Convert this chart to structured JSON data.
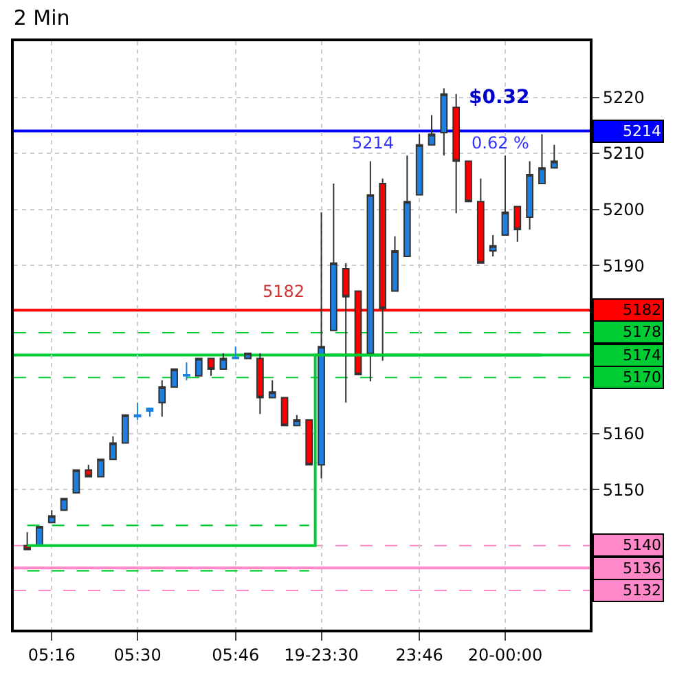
{
  "chart_data": {
    "type": "candlestick",
    "title": "2 Min",
    "categories": [
      null,
      null,
      "05:16",
      null,
      null,
      null,
      null,
      null,
      null,
      "05:30",
      null,
      null,
      null,
      null,
      null,
      null,
      null,
      "05:46",
      null,
      null,
      null,
      null,
      null,
      null,
      "19-23:30",
      null,
      null,
      null,
      null,
      null,
      null,
      null,
      "23:46",
      null,
      null,
      null,
      null,
      null,
      null,
      "20-00:00",
      null,
      null,
      null,
      null
    ],
    "ohlc": [
      [
        5140.0,
        5142.4,
        5139.3,
        5139.3
      ],
      [
        5140.0,
        5143.4,
        5140.0,
        5143.4
      ],
      [
        5144.1,
        5146.3,
        5144.1,
        5145.3
      ],
      [
        5146.3,
        5148.5,
        5146.3,
        5148.4
      ],
      [
        5149.4,
        5153.5,
        5149.4,
        5153.5
      ],
      [
        5153.5,
        5154.4,
        5152.3,
        5152.3
      ],
      [
        5152.3,
        5155.4,
        5152.3,
        5155.4
      ],
      [
        5155.4,
        5159.5,
        5155.4,
        5158.3
      ],
      [
        5158.3,
        5163.3,
        5158.3,
        5163.3
      ],
      [
        5163.0,
        5165.5,
        5162.4,
        5163.3
      ],
      [
        5164.5,
        5164.5,
        5163.0,
        5164.0
      ],
      [
        5165.5,
        5169.5,
        5163.0,
        5168.3
      ],
      [
        5168.3,
        5171.5,
        5168.3,
        5171.5
      ],
      [
        5170.3,
        5172.7,
        5169.5,
        5170.5
      ],
      [
        5170.3,
        5173.4,
        5170.3,
        5173.4
      ],
      [
        5173.4,
        5173.4,
        5170.3,
        5171.5
      ],
      [
        5171.5,
        5174.3,
        5171.5,
        5173.4
      ],
      [
        5173.4,
        5175.5,
        5173.4,
        5173.6
      ],
      [
        5173.4,
        5174.3,
        5173.4,
        5174.3
      ],
      [
        5173.4,
        5174.3,
        5163.5,
        5166.4
      ],
      [
        5166.4,
        5169.5,
        5166.4,
        5167.4
      ],
      [
        5166.4,
        5166.4,
        5161.4,
        5161.4
      ],
      [
        5161.4,
        5163.3,
        5161.4,
        5162.4
      ],
      [
        5162.4,
        5162.4,
        5154.4,
        5154.4
      ],
      [
        5154.4,
        5199.5,
        5152.0,
        5175.5
      ],
      [
        5178.4,
        5204.6,
        5178.4,
        5190.4
      ],
      [
        5189.4,
        5190.4,
        5165.5,
        5184.4
      ],
      [
        5185.4,
        5185.4,
        5170.5,
        5170.5
      ],
      [
        5174.3,
        5208.6,
        5169.3,
        5202.6
      ],
      [
        5204.6,
        5205.5,
        5173.0,
        5182.3
      ],
      [
        5185.4,
        5195.2,
        5185.4,
        5192.6
      ],
      [
        5191.6,
        5209.6,
        5191.6,
        5201.4
      ],
      [
        5202.6,
        5213.4,
        5202.6,
        5211.5
      ],
      [
        5211.5,
        5216.8,
        5211.5,
        5213.4
      ],
      [
        5213.7,
        5221.6,
        5209.6,
        5220.6
      ],
      [
        5218.2,
        5220.6,
        5199.3,
        5208.6
      ],
      [
        5208.6,
        5208.6,
        5201.4,
        5201.4
      ],
      [
        5201.4,
        5205.5,
        5190.4,
        5190.4
      ],
      [
        5192.6,
        5195.4,
        5191.6,
        5193.5
      ],
      [
        5195.4,
        5209.6,
        5195.4,
        5199.5
      ],
      [
        5200.5,
        5200.5,
        5194.2,
        5196.4
      ],
      [
        5198.6,
        5208.6,
        5196.4,
        5206.2
      ],
      [
        5204.6,
        5213.4,
        5204.6,
        5207.4
      ],
      [
        5207.4,
        5211.5,
        5207.4,
        5208.6
      ]
    ],
    "colors": [
      "#ff0000",
      "#1e7fe0",
      "#1e7fe0",
      "#1e7fe0",
      "#1e7fe0",
      "#ff0000",
      "#1e7fe0",
      "#1e7fe0",
      "#1e7fe0",
      "#1e7fe0",
      "#1e7fe0",
      "#1e7fe0",
      "#1e7fe0",
      "#1e7fe0",
      "#1e7fe0",
      "#ff0000",
      "#1e7fe0",
      "#1e7fe0",
      "#1e7fe0",
      "#ff0000",
      "#1e7fe0",
      "#ff0000",
      "#1e7fe0",
      "#ff0000",
      "#1e7fe0",
      "#1e7fe0",
      "#ff0000",
      "#ff0000",
      "#1e7fe0",
      "#ff0000",
      "#1e7fe0",
      "#1e7fe0",
      "#1e7fe0",
      "#1e7fe0",
      "#1e7fe0",
      "#ff0000",
      "#ff0000",
      "#ff0000",
      "#1e7fe0",
      "#1e7fe0",
      "#ff0000",
      "#1e7fe0",
      "#1e7fe0",
      "#1e7fe0"
    ],
    "series": [
      {
        "type": "step",
        "color": "#00cc33",
        "line_style": "solid",
        "values": [
          5140,
          5140,
          5140,
          5140,
          5140,
          5140,
          5140,
          5140,
          5140,
          5140,
          5140,
          5140,
          5140,
          5140,
          5140,
          5140,
          5140,
          5140,
          5140,
          5140,
          5140,
          5140,
          5140,
          5140,
          5174,
          5174,
          5174,
          5174,
          5174,
          5174,
          5174,
          5174,
          5174,
          5174,
          5174,
          5174,
          5174,
          5174,
          5174,
          5174,
          5174,
          5174,
          5174,
          null
        ]
      },
      {
        "type": "step",
        "color": "#00cc33",
        "line_style": "dashed",
        "values": [
          5143.6,
          5143.6,
          5143.6,
          5143.6,
          5143.6,
          5143.6,
          5143.6,
          5143.6,
          5143.6,
          5143.6,
          5143.6,
          5143.6,
          5143.6,
          5143.6,
          5143.6,
          5143.6,
          5143.6,
          5143.6,
          5143.6,
          5143.6,
          5143.6,
          5143.6,
          5143.6,
          5143.6,
          null,
          null,
          null,
          null,
          null,
          null,
          null,
          null,
          null,
          null,
          null,
          null,
          null,
          null,
          null,
          null,
          null,
          null,
          null,
          null
        ]
      },
      {
        "type": "step",
        "color": "#00cc33",
        "line_style": "dashed",
        "values": [
          5135.5,
          5135.5,
          5135.5,
          5135.5,
          5135.5,
          5135.5,
          5135.5,
          5135.5,
          5135.5,
          5135.5,
          5135.5,
          5135.5,
          5135.5,
          5135.5,
          5135.5,
          5135.5,
          5135.5,
          5135.5,
          5135.5,
          5135.5,
          5135.5,
          5135.5,
          5135.5,
          5135.5,
          null,
          null,
          null,
          null,
          null,
          null,
          null,
          null,
          null,
          null,
          null,
          null,
          null,
          null,
          null,
          null,
          null,
          null,
          null,
          null
        ]
      }
    ],
    "ref_lines": [
      {
        "axis": "y",
        "value": 5214,
        "label": "5214",
        "color": "#0000ff",
        "line_style": "solid"
      },
      {
        "axis": "y",
        "value": 5182,
        "label": "5182",
        "color": "#ff0000",
        "line_style": "solid"
      },
      {
        "axis": "y",
        "value": 5178,
        "label": "5178",
        "color": "#00cc33",
        "line_style": "dashed"
      },
      {
        "axis": "y",
        "value": 5174,
        "label": "5174",
        "color": "#00cc33",
        "line_style": "solid"
      },
      {
        "axis": "y",
        "value": 5170,
        "label": "5170",
        "color": "#00cc33",
        "line_style": "dashed"
      },
      {
        "axis": "y",
        "value": 5140,
        "label": "5140",
        "color": "#ff88c8",
        "line_style": "dashed"
      },
      {
        "axis": "y",
        "value": 5136,
        "label": "5136",
        "color": "#ff88c8",
        "line_style": "solid"
      },
      {
        "axis": "y",
        "value": 5132,
        "label": "5132",
        "color": "#ff88c8",
        "line_style": "dashed"
      }
    ],
    "annotations": [
      "$0.32",
      "0.62 %",
      "5214",
      "5182"
    ],
    "ylim": [
      5125,
      5230
    ],
    "yticks": [
      5220,
      5210,
      5200,
      5190,
      5160,
      5150
    ],
    "grid": true
  }
}
